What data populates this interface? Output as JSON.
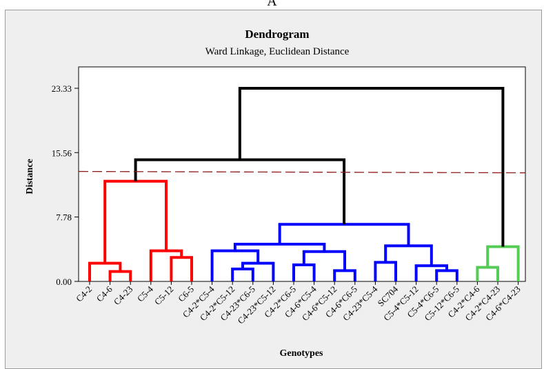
{
  "panel_label": "A",
  "chart_data": {
    "type": "dendrogram",
    "title": "Dendrogram",
    "subtitle": "Ward Linkage, Euclidean Distance",
    "xlabel": "Genotypes",
    "ylabel": "Distance",
    "ylim": [
      0,
      24.2
    ],
    "yticks": [
      "0.00",
      "7.78",
      "15.56",
      "23.33"
    ],
    "ytick_values": [
      0,
      7.78,
      15.56,
      23.33
    ],
    "cut_height": 13.2,
    "leaves": [
      "C4-2",
      "C4-6",
      "C4-23",
      "C5-4",
      "C5-12",
      "C6-5",
      "C4-2*C5-4",
      "C4-2*C5-12",
      "C4-23*C6-5",
      "C4-23*C5-12",
      "C4-2*C6-5",
      "C4-6*C5-4",
      "C4-6*C5-12",
      "C4-6*C6-5",
      "C4-23*C5-4",
      "SC704",
      "C5-4*C5-12",
      "C5-4*C6-5",
      "C5-12*C6-5",
      "C4-2*C4-6",
      "C4-2*C4-23",
      "C4-6*C4-23"
    ],
    "merges": [
      {
        "a": "L1",
        "b": "L2",
        "h": 1.2,
        "color": "#ff0000"
      },
      {
        "a": "L0",
        "b": "N0",
        "h": 2.2,
        "color": "#ff0000"
      },
      {
        "a": "L4",
        "b": "L5",
        "h": 2.9,
        "color": "#ff0000"
      },
      {
        "a": "L3",
        "b": "N2",
        "h": 3.7,
        "color": "#ff0000"
      },
      {
        "a": "N1",
        "b": "N3",
        "h": 12.1,
        "color": "#ff0000"
      },
      {
        "a": "L7",
        "b": "L8",
        "h": 1.5,
        "color": "#0000ff"
      },
      {
        "a": "N5",
        "b": "L9",
        "h": 2.2,
        "color": "#0000ff"
      },
      {
        "a": "L6",
        "b": "N6",
        "h": 3.7,
        "color": "#0000ff"
      },
      {
        "a": "L12",
        "b": "L13",
        "h": 1.3,
        "color": "#0000ff"
      },
      {
        "a": "L10",
        "b": "L11",
        "h": 2.0,
        "color": "#0000ff"
      },
      {
        "a": "N9",
        "b": "N8",
        "h": 3.6,
        "color": "#0000ff"
      },
      {
        "a": "N7",
        "b": "N10",
        "h": 4.5,
        "color": "#0000ff"
      },
      {
        "a": "L17",
        "b": "L18",
        "h": 1.3,
        "color": "#0000ff"
      },
      {
        "a": "L16",
        "b": "N12",
        "h": 1.9,
        "color": "#0000ff"
      },
      {
        "a": "L14",
        "b": "L15",
        "h": 2.3,
        "color": "#0000ff"
      },
      {
        "a": "N14",
        "b": "N13",
        "h": 4.3,
        "color": "#0000ff"
      },
      {
        "a": "N11",
        "b": "N15",
        "h": 6.9,
        "color": "#0000ff"
      },
      {
        "a": "L19",
        "b": "L20",
        "h": 1.7,
        "color": "#55cc55"
      },
      {
        "a": "N17",
        "b": "L21",
        "h": 4.2,
        "color": "#55cc55"
      },
      {
        "a": "N4",
        "b": "N16",
        "h": 14.7,
        "color": "#000000"
      },
      {
        "a": "N19",
        "b": "N18",
        "h": 23.33,
        "color": "#000000"
      }
    ],
    "colors": {
      "cut_line": "#8b1a1a",
      "cluster1": "#ff0000",
      "cluster2": "#0000ff",
      "cluster3": "#55cc55",
      "upper": "#000000"
    }
  }
}
